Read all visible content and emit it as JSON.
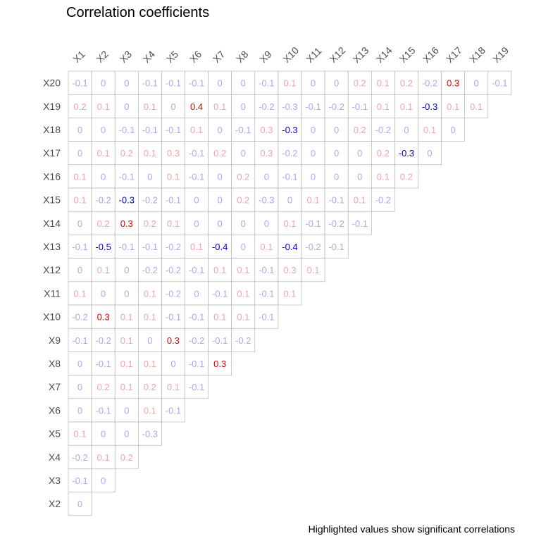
{
  "chart_data": {
    "type": "heatmap",
    "title": "Correlation coefficients",
    "caption": "Highlighted values show significant correlations",
    "layout": "lower-triangle",
    "columns": [
      "X1",
      "X2",
      "X3",
      "X4",
      "X5",
      "X6",
      "X7",
      "X8",
      "X9",
      "X10",
      "X11",
      "X12",
      "X13",
      "X14",
      "X15",
      "X16",
      "X17",
      "X18",
      "X19"
    ],
    "rows": [
      {
        "label": "X20",
        "values": [
          -0.1,
          0,
          0,
          -0.1,
          -0.1,
          -0.1,
          0,
          0,
          -0.1,
          0.1,
          0,
          0,
          0.2,
          0.1,
          0.2,
          -0.2,
          0.3,
          0,
          -0.1
        ],
        "significant": [
          "X17"
        ]
      },
      {
        "label": "X19",
        "values": [
          0.2,
          0.1,
          0,
          0.1,
          0,
          0.4,
          0.1,
          0,
          -0.2,
          -0.3,
          -0.1,
          -0.2,
          -0.1,
          0.1,
          0.1,
          -0.3,
          0.1,
          0.1
        ],
        "significant": [
          "X6",
          "X16"
        ]
      },
      {
        "label": "X18",
        "values": [
          0,
          0,
          -0.1,
          -0.1,
          -0.1,
          0.1,
          0,
          -0.1,
          0.3,
          -0.3,
          0,
          0,
          0.2,
          -0.2,
          0,
          0.1,
          0
        ],
        "significant": [
          "X10"
        ]
      },
      {
        "label": "X17",
        "values": [
          0,
          0.1,
          0.2,
          0.1,
          0.3,
          -0.1,
          0.2,
          0,
          0.3,
          -0.2,
          0,
          0,
          0,
          0.2,
          -0.3,
          0
        ],
        "significant": [
          "X15"
        ]
      },
      {
        "label": "X16",
        "values": [
          0.1,
          0,
          -0.1,
          0,
          0.1,
          -0.1,
          0,
          0.2,
          0,
          -0.1,
          0,
          0,
          0,
          0.1,
          0.2
        ],
        "significant": []
      },
      {
        "label": "X15",
        "values": [
          0.1,
          -0.2,
          -0.3,
          -0.2,
          -0.1,
          0,
          0,
          0.2,
          -0.3,
          0,
          0.1,
          -0.1,
          0.1,
          -0.2
        ],
        "significant": [
          "X3"
        ]
      },
      {
        "label": "X14",
        "values": [
          0,
          0.2,
          0.3,
          0.2,
          0.1,
          0,
          0,
          0,
          0,
          0.1,
          -0.1,
          -0.2,
          -0.1
        ],
        "significant": [
          "X3"
        ]
      },
      {
        "label": "X13",
        "values": [
          -0.1,
          -0.5,
          -0.1,
          -0.1,
          -0.2,
          0.1,
          -0.4,
          0,
          0.1,
          -0.4,
          -0.2,
          -0.1
        ],
        "significant": [
          "X2",
          "X7",
          "X10"
        ]
      },
      {
        "label": "X12",
        "values": [
          0,
          0.1,
          0,
          -0.2,
          -0.2,
          -0.1,
          0.1,
          0.1,
          -0.1,
          0.3,
          0.1
        ],
        "significant": []
      },
      {
        "label": "X11",
        "values": [
          0.1,
          0,
          0,
          0.1,
          -0.2,
          0,
          -0.1,
          0.1,
          -0.1,
          0.1
        ],
        "significant": []
      },
      {
        "label": "X10",
        "values": [
          -0.2,
          0.3,
          0.1,
          0.1,
          -0.1,
          -0.1,
          0.1,
          0.1,
          -0.1
        ],
        "significant": [
          "X2"
        ]
      },
      {
        "label": "X9",
        "values": [
          -0.1,
          -0.2,
          0.1,
          0,
          0.3,
          -0.2,
          -0.1,
          -0.2
        ],
        "significant": [
          "X5"
        ]
      },
      {
        "label": "X8",
        "values": [
          0,
          -0.1,
          0.1,
          0.1,
          0,
          -0.1,
          0.3
        ],
        "significant": [
          "X7"
        ]
      },
      {
        "label": "X7",
        "values": [
          0,
          0.2,
          0.1,
          0.2,
          0.1,
          -0.1
        ],
        "significant": []
      },
      {
        "label": "X6",
        "values": [
          0,
          -0.1,
          0,
          0.1,
          -0.1
        ],
        "significant": []
      },
      {
        "label": "X5",
        "values": [
          0.1,
          0,
          0,
          -0.3
        ],
        "significant": []
      },
      {
        "label": "X4",
        "values": [
          -0.2,
          0.1,
          0.2
        ],
        "significant": []
      },
      {
        "label": "X3",
        "values": [
          -0.1,
          0
        ],
        "significant": []
      },
      {
        "label": "X2",
        "values": [
          0
        ],
        "significant": []
      }
    ],
    "colors": {
      "significant_positive": "#e00000",
      "significant_negative": "#0000cc",
      "muted_positive": "#f4a4a4",
      "muted_negative": "#a9a9f0",
      "muted_zero": "#a9a9f0",
      "grid": "#aaaaaa",
      "labels": "#4d4d4d"
    }
  }
}
